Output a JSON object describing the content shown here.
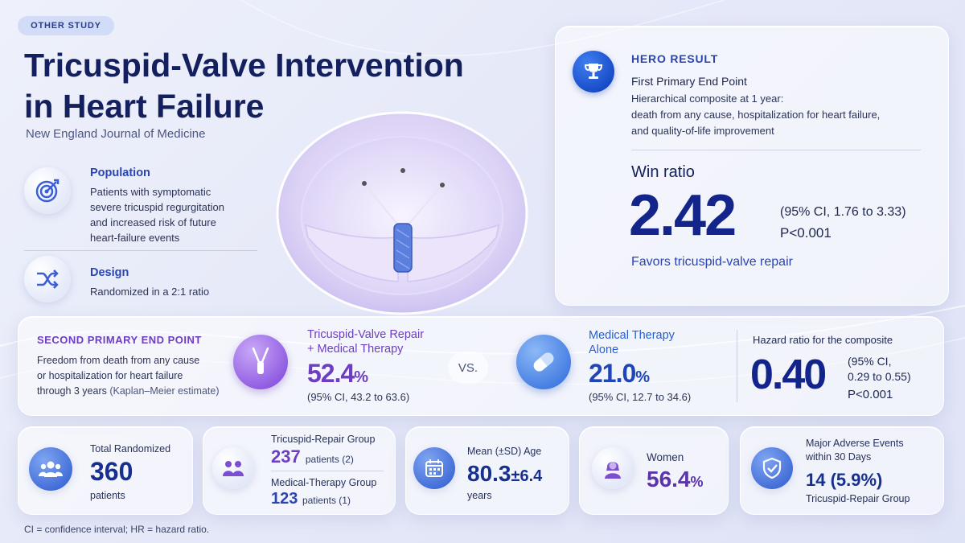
{
  "header": {
    "tag": "OTHER STUDY",
    "title_line1": "Tricuspid-Valve Intervention",
    "title_line2": "in Heart Failure",
    "journal": "New England Journal of Medicine"
  },
  "population": {
    "title": "Population",
    "lines": [
      "Patients with symptomatic",
      "severe tricuspid regurgitation",
      "and increased risk of future",
      "heart-failure events"
    ]
  },
  "design": {
    "title": "Design",
    "text": "Randomized in a 2:1 ratio"
  },
  "hero": {
    "label": "HERO RESULT",
    "endpoint": "First Primary End Point",
    "desc_lines": [
      "Hierarchical composite at 1 year:",
      "death from any cause, hospitalization for heart failure,",
      "and quality-of-life improvement"
    ],
    "metric_label": "Win ratio",
    "value": "2.42",
    "ci": "(95% CI, 1.76 to 3.33)",
    "p": "P<0.001",
    "favors": "Favors tricuspid-valve repair"
  },
  "second": {
    "label": "SECOND PRIMARY END POINT",
    "desc_line1": "Freedom from death from any cause",
    "desc_line2": "or hospitalization for heart failure",
    "desc_line3_main": "through 3 years",
    "desc_line3_note": "(Kaplan–Meier estimate)",
    "repair_label_line1": "Tricuspid-Valve Repair",
    "repair_label_line2": "+ Medical Therapy",
    "repair_value": "52.4",
    "repair_unit": "%",
    "repair_ci": "(95% CI, 43.2 to 63.6)",
    "vs": "VS.",
    "medical_label_line1": "Medical Therapy",
    "medical_label_line2": "Alone",
    "medical_value": "21.0",
    "medical_unit": "%",
    "medical_ci": "(95% CI, 12.7 to 34.6)",
    "hr_label": "Hazard ratio for the composite",
    "hr_value": "0.40",
    "hr_ci_line1": "(95% CI,",
    "hr_ci_line2": "0.29 to 0.55)",
    "hr_p": "P<0.001"
  },
  "stats": {
    "total_label": "Total Randomized",
    "total_value": "360",
    "total_unit": "patients",
    "repair_group_label": "Tricuspid-Repair Group",
    "repair_group_value": "237",
    "repair_group_unit": "patients (2)",
    "medical_group_label": "Medical-Therapy Group",
    "medical_group_value": "123",
    "medical_group_unit": "patients (1)",
    "age_label": "Mean (±SD) Age",
    "age_value": "80.3",
    "age_sd": "±6.4",
    "age_unit": "years",
    "women_label": "Women",
    "women_value": "56.4",
    "women_unit": "%",
    "mae_label_line1": "Major Adverse Events",
    "mae_label_line2": "within 30 Days",
    "mae_value": "14 (5.9%)",
    "mae_group": "Tricuspid-Repair Group"
  },
  "footnote": "CI = confidence interval;  HR = hazard ratio.",
  "icons": {
    "population": "target-icon",
    "design": "shuffle-icon",
    "hero": "trophy-icon",
    "repair": "clip-device-icon",
    "medical": "pill-icon",
    "total": "group-icon",
    "groups": "people-icon",
    "age": "calendar-icon",
    "women": "woman-icon",
    "mae": "shield-check-icon"
  },
  "colors": {
    "navy": "#13258a",
    "accent_blue": "#2a45b0",
    "purple": "#6d3fc0",
    "hero_icon": "#1446c4"
  }
}
